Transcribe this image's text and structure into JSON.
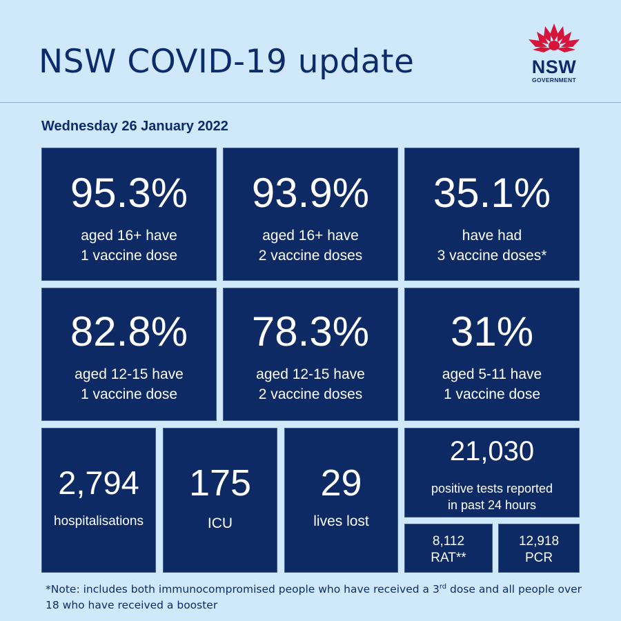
{
  "header": {
    "title": "NSW COVID-19 update",
    "logo": {
      "word": "NSW",
      "sub": "GOVERNMENT",
      "icon": "waratah-flower-icon"
    }
  },
  "date": "Wednesday 26 January 2022",
  "vaccination": [
    {
      "value": "95.3%",
      "line1": "aged 16+ have",
      "line2": "1 vaccine dose"
    },
    {
      "value": "93.9%",
      "line1": "aged 16+ have",
      "line2": "2 vaccine doses"
    },
    {
      "value": "35.1%",
      "line1": "have had",
      "line2": "3 vaccine doses*"
    },
    {
      "value": "82.8%",
      "line1": "aged 12-15 have",
      "line2": "1 vaccine dose"
    },
    {
      "value": "78.3%",
      "line1": "aged 12-15 have",
      "line2": "2 vaccine doses"
    },
    {
      "value": "31%",
      "line1": "aged 5-11 have",
      "line2": "1 vaccine dose"
    }
  ],
  "stats": {
    "hospitalisations": {
      "value": "2,794",
      "label": "hospitalisations"
    },
    "icu": {
      "value": "175",
      "label": "ICU"
    },
    "lives_lost": {
      "value": "29",
      "label": "lives lost"
    },
    "positive_tests": {
      "value": "21,030",
      "line1": "positive tests reported",
      "line2": "in past 24 hours"
    },
    "rat": {
      "value": "8,112",
      "label": "RAT**"
    },
    "pcr": {
      "value": "12,918",
      "label": "PCR"
    }
  },
  "note": {
    "part1": "*Note: includes both immunocompromised people who have received a 3",
    "sup": "rd",
    "part2": " dose and all people over 18 who have received a booster"
  },
  "colors": {
    "background": "#cfe9fb",
    "tile": "#0d2a64",
    "title": "#0d2a6b",
    "logo_red": "#d7153a"
  }
}
